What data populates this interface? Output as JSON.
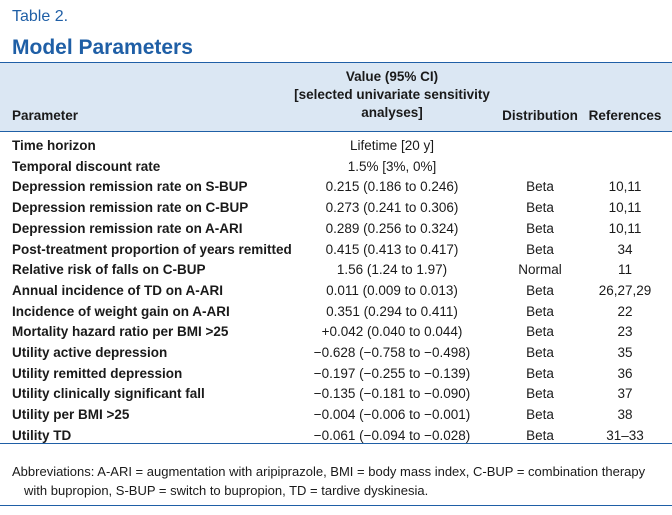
{
  "header": {
    "label": "Table 2.",
    "title": "Model Parameters"
  },
  "table": {
    "columns": [
      "Parameter",
      [
        "Value (95% CI)",
        "[selected univariate sensitivity",
        "analyses]"
      ],
      "Distribution",
      "References"
    ],
    "rows": [
      [
        "Time horizon",
        "Lifetime [20 y]"
      ],
      [
        "Temporal discount rate",
        "1.5% [3%, 0%]"
      ],
      [
        "Depression remission rate on S-BUP",
        "0.215 (0.186 to 0.246)",
        "Beta",
        "10,11"
      ],
      [
        "Depression remission rate on C-BUP",
        "0.273 (0.241 to 0.306)",
        "Beta",
        "10,11"
      ],
      [
        "Depression remission rate on A-ARI",
        "0.289 (0.256 to 0.324)",
        "Beta",
        "10,11"
      ],
      [
        "Post-treatment proportion of years remitted",
        "0.415 (0.413 to 0.417)",
        "Beta",
        "34"
      ],
      [
        "Relative risk of falls on C-BUP",
        "1.56 (1.24 to 1.97)",
        "Normal",
        "11"
      ],
      [
        "Annual incidence of TD on A-ARI",
        "0.011 (0.009 to 0.013)",
        "Beta",
        "26,27,29"
      ],
      [
        "Incidence of weight gain on A-ARI",
        "0.351 (0.294 to 0.411)",
        "Beta",
        "22"
      ],
      [
        "Mortality hazard ratio per BMI >25",
        "+0.042 (0.040 to 0.044)",
        "Beta",
        "23"
      ],
      [
        "Utility active depression",
        "−0.628 (−0.758 to −0.498)",
        "Beta",
        "35"
      ],
      [
        "Utility remitted depression",
        "−0.197 (−0.255 to −0.139)",
        "Beta",
        "36"
      ],
      [
        "Utility clinically significant fall",
        "−0.135 (−0.181 to −0.090)",
        "Beta",
        "37"
      ],
      [
        "Utility per BMI >25",
        "−0.004 (−0.006 to −0.001)",
        "Beta",
        "38"
      ],
      [
        "Utility TD",
        "−0.061 (−0.094 to −0.028)",
        "Beta",
        "31–33"
      ]
    ]
  },
  "footer": {
    "note": "Abbreviations: A-ARI = augmentation with aripiprazole, BMI = body mass index, C-BUP = combination therapy with bupropion, S-BUP = switch to bupropion, TD = tardive dyskinesia."
  }
}
